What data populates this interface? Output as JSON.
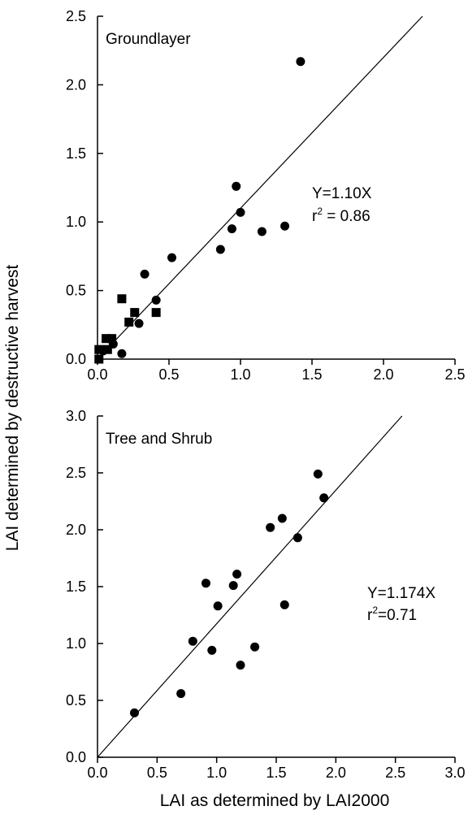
{
  "chart_data": {
    "ylabel": "LAI determined by destructive harvest",
    "xlabel": "LAI as determined by LAI2000",
    "panels": [
      {
        "type": "scatter",
        "title": "Groundlayer",
        "xlim": [
          0,
          2.5
        ],
        "ylim": [
          0,
          2.5
        ],
        "xticks": [
          "0.0",
          "0.5",
          "1.0",
          "1.5",
          "2.0",
          "2.5"
        ],
        "yticks": [
          "0.0",
          "0.5",
          "1.0",
          "1.5",
          "2.0",
          "2.5"
        ],
        "fit_slope": 1.1,
        "equation": "Y=1.10X",
        "r2_prefix": "r",
        "r2_exp": "2",
        "r2_value": " = 0.86",
        "series": [
          {
            "marker": "circle",
            "points": [
              [
                1.42,
                2.17
              ],
              [
                0.97,
                1.26
              ],
              [
                1.0,
                1.07
              ],
              [
                0.94,
                0.95
              ],
              [
                1.31,
                0.97
              ],
              [
                1.15,
                0.93
              ],
              [
                0.86,
                0.8
              ],
              [
                0.52,
                0.74
              ],
              [
                0.33,
                0.62
              ],
              [
                0.41,
                0.43
              ],
              [
                0.29,
                0.26
              ],
              [
                0.17,
                0.04
              ],
              [
                0.11,
                0.11
              ],
              [
                0.04,
                0.06
              ]
            ]
          },
          {
            "marker": "square",
            "points": [
              [
                0.17,
                0.44
              ],
              [
                0.26,
                0.34
              ],
              [
                0.41,
                0.34
              ],
              [
                0.22,
                0.27
              ],
              [
                0.06,
                0.15
              ],
              [
                0.1,
                0.15
              ],
              [
                0.01,
                0.07
              ],
              [
                0.07,
                0.07
              ],
              [
                0.01,
                0.0
              ]
            ]
          }
        ]
      },
      {
        "type": "scatter",
        "title": "Tree and Shrub",
        "xlim": [
          0,
          3.0
        ],
        "ylim": [
          0,
          3.0
        ],
        "xticks": [
          "0.0",
          "0.5",
          "1.0",
          "1.5",
          "2.0",
          "2.5",
          "3.0"
        ],
        "yticks": [
          "0.0",
          "0.5",
          "1.0",
          "1.5",
          "2.0",
          "2.5",
          "3.0"
        ],
        "fit_slope": 1.174,
        "equation": "Y=1.174X",
        "r2_prefix": "r",
        "r2_exp": "2",
        "r2_value": "=0.71",
        "series": [
          {
            "marker": "circle",
            "points": [
              [
                1.85,
                2.49
              ],
              [
                1.9,
                2.28
              ],
              [
                1.55,
                2.1
              ],
              [
                1.45,
                2.02
              ],
              [
                1.68,
                1.93
              ],
              [
                1.17,
                1.61
              ],
              [
                0.91,
                1.53
              ],
              [
                1.14,
                1.51
              ],
              [
                1.01,
                1.33
              ],
              [
                1.57,
                1.34
              ],
              [
                0.8,
                1.02
              ],
              [
                0.96,
                0.94
              ],
              [
                1.32,
                0.97
              ],
              [
                1.2,
                0.81
              ],
              [
                0.7,
                0.56
              ],
              [
                0.31,
                0.39
              ]
            ]
          }
        ]
      }
    ]
  }
}
